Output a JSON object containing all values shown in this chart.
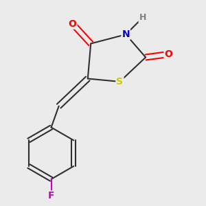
{
  "bg_color": "#ebebeb",
  "atom_colors": {
    "O": "#ff0000",
    "N": "#0000cd",
    "S": "#cccc00",
    "H": "#808080",
    "F": "#cc00cc",
    "C": "#303030"
  },
  "bond_color": "#303030",
  "bond_width": 1.5
}
